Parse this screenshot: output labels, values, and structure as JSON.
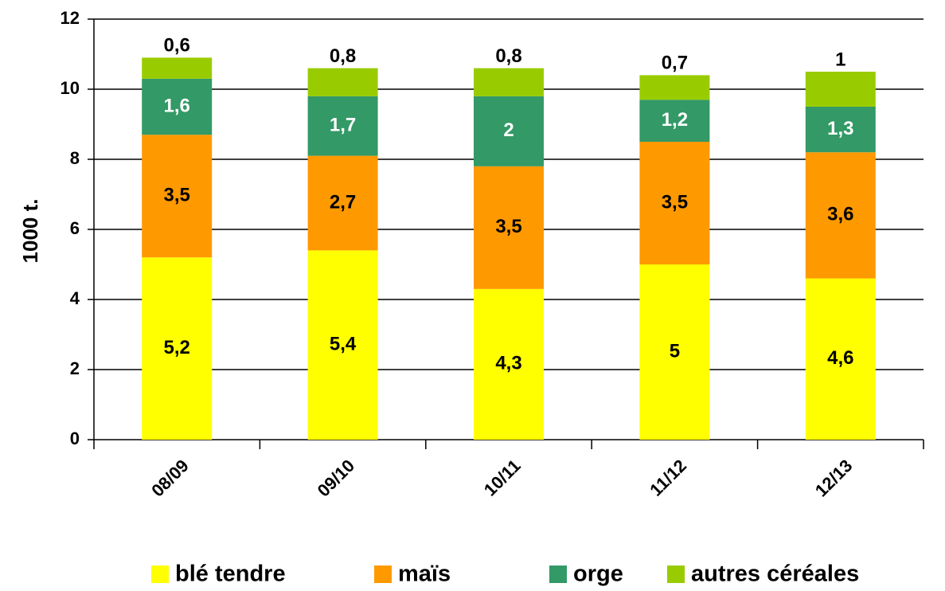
{
  "chart_data": {
    "type": "stacked_bar",
    "ylabel": "1000 t.",
    "categories": [
      "08/09",
      "09/10",
      "10/11",
      "11/12",
      "12/13"
    ],
    "series": [
      {
        "name": "blé tendre",
        "color": "#ffff00",
        "label_color": "#000000",
        "values": [
          5.2,
          5.4,
          4.3,
          5,
          4.6
        ],
        "value_labels": [
          "5,2",
          "5,4",
          "4,3",
          "5",
          "4,6"
        ]
      },
      {
        "name": "maïs",
        "color": "#ff9900",
        "label_color": "#000000",
        "values": [
          3.5,
          2.7,
          3.5,
          3.5,
          3.6
        ],
        "value_labels": [
          "3,5",
          "2,7",
          "3,5",
          "3,5",
          "3,6"
        ]
      },
      {
        "name": "orge",
        "color": "#339966",
        "label_color": "#ffffff",
        "values": [
          1.6,
          1.7,
          2,
          1.2,
          1.3
        ],
        "value_labels": [
          "1,6",
          "1,7",
          "2",
          "1,2",
          "1,3"
        ]
      },
      {
        "name": "autres céréales",
        "color": "#99cc00",
        "label_color": "#000000",
        "values": [
          0.6,
          0.8,
          0.8,
          0.7,
          1
        ],
        "value_labels": [
          "0,6",
          "0,8",
          "0,8",
          "0,7",
          "1"
        ]
      }
    ],
    "ylim": [
      0,
      12
    ],
    "yticks": [
      0,
      2,
      4,
      6,
      8,
      10,
      12
    ],
    "grid": true,
    "legend": "bottom"
  }
}
